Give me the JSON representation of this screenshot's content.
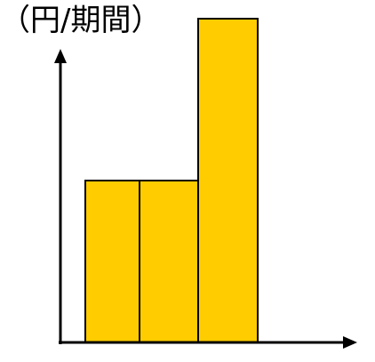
{
  "chart_data": {
    "type": "bar",
    "ylabel": "（円/期間）",
    "xlabel": "",
    "categories": [
      "",
      "",
      ""
    ],
    "values": [
      2,
      2,
      4
    ],
    "ylim": [
      0,
      4.5
    ],
    "grid": false,
    "legend": "none",
    "bar_color": "#FFCC00",
    "bar_edge_color": "#000000",
    "axis_color": "#000000"
  }
}
